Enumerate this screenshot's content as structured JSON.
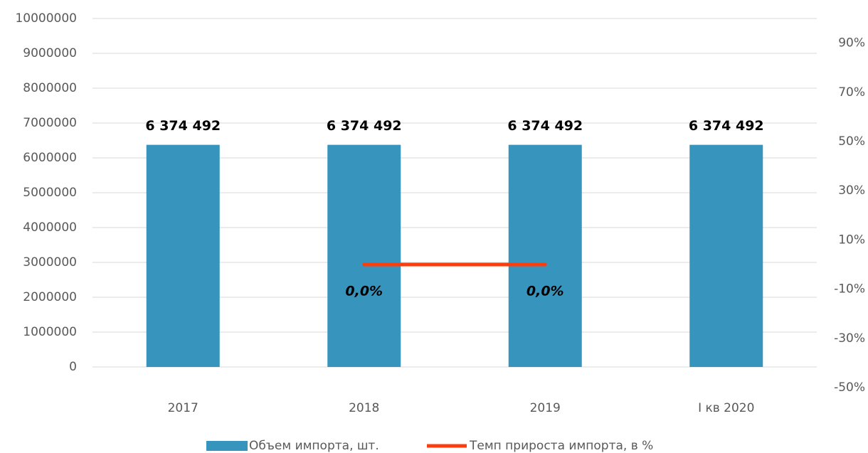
{
  "chart_data": {
    "type": "bar",
    "categories": [
      "2017",
      "2018",
      "2019",
      "I кв 2020"
    ],
    "series": [
      {
        "name": "Объем импорта, шт.",
        "type": "bar",
        "color": "#3795bd",
        "values": [
          6374492,
          6374492,
          6374492,
          6374492
        ],
        "value_labels": [
          "6 374 492",
          "6 374 492",
          "6 374 492",
          "6 374 492"
        ]
      },
      {
        "name": "Темп прироста импорта, в %",
        "type": "line",
        "color": "#fc3d0d",
        "axis": "y2",
        "values": [
          null,
          0,
          0,
          null
        ],
        "value_labels": [
          null,
          "0,0%",
          "0,0%",
          null
        ]
      }
    ],
    "ylim": [
      0,
      10000000
    ],
    "yticks": [
      0,
      1000000,
      2000000,
      3000000,
      4000000,
      5000000,
      6000000,
      7000000,
      8000000,
      9000000,
      10000000
    ],
    "y2lim": [
      -50,
      100
    ],
    "y2ticks": [
      {
        "value": -50,
        "label": "-50%"
      },
      {
        "value": -30,
        "label": "-30%"
      },
      {
        "value": -10,
        "label": "-10%"
      },
      {
        "value": 10,
        "label": "10%"
      },
      {
        "value": 30,
        "label": "30%"
      },
      {
        "value": 50,
        "label": "50%"
      },
      {
        "value": 70,
        "label": "70%"
      },
      {
        "value": 90,
        "label": "90%"
      }
    ],
    "grid": true,
    "legend": "bottom"
  }
}
